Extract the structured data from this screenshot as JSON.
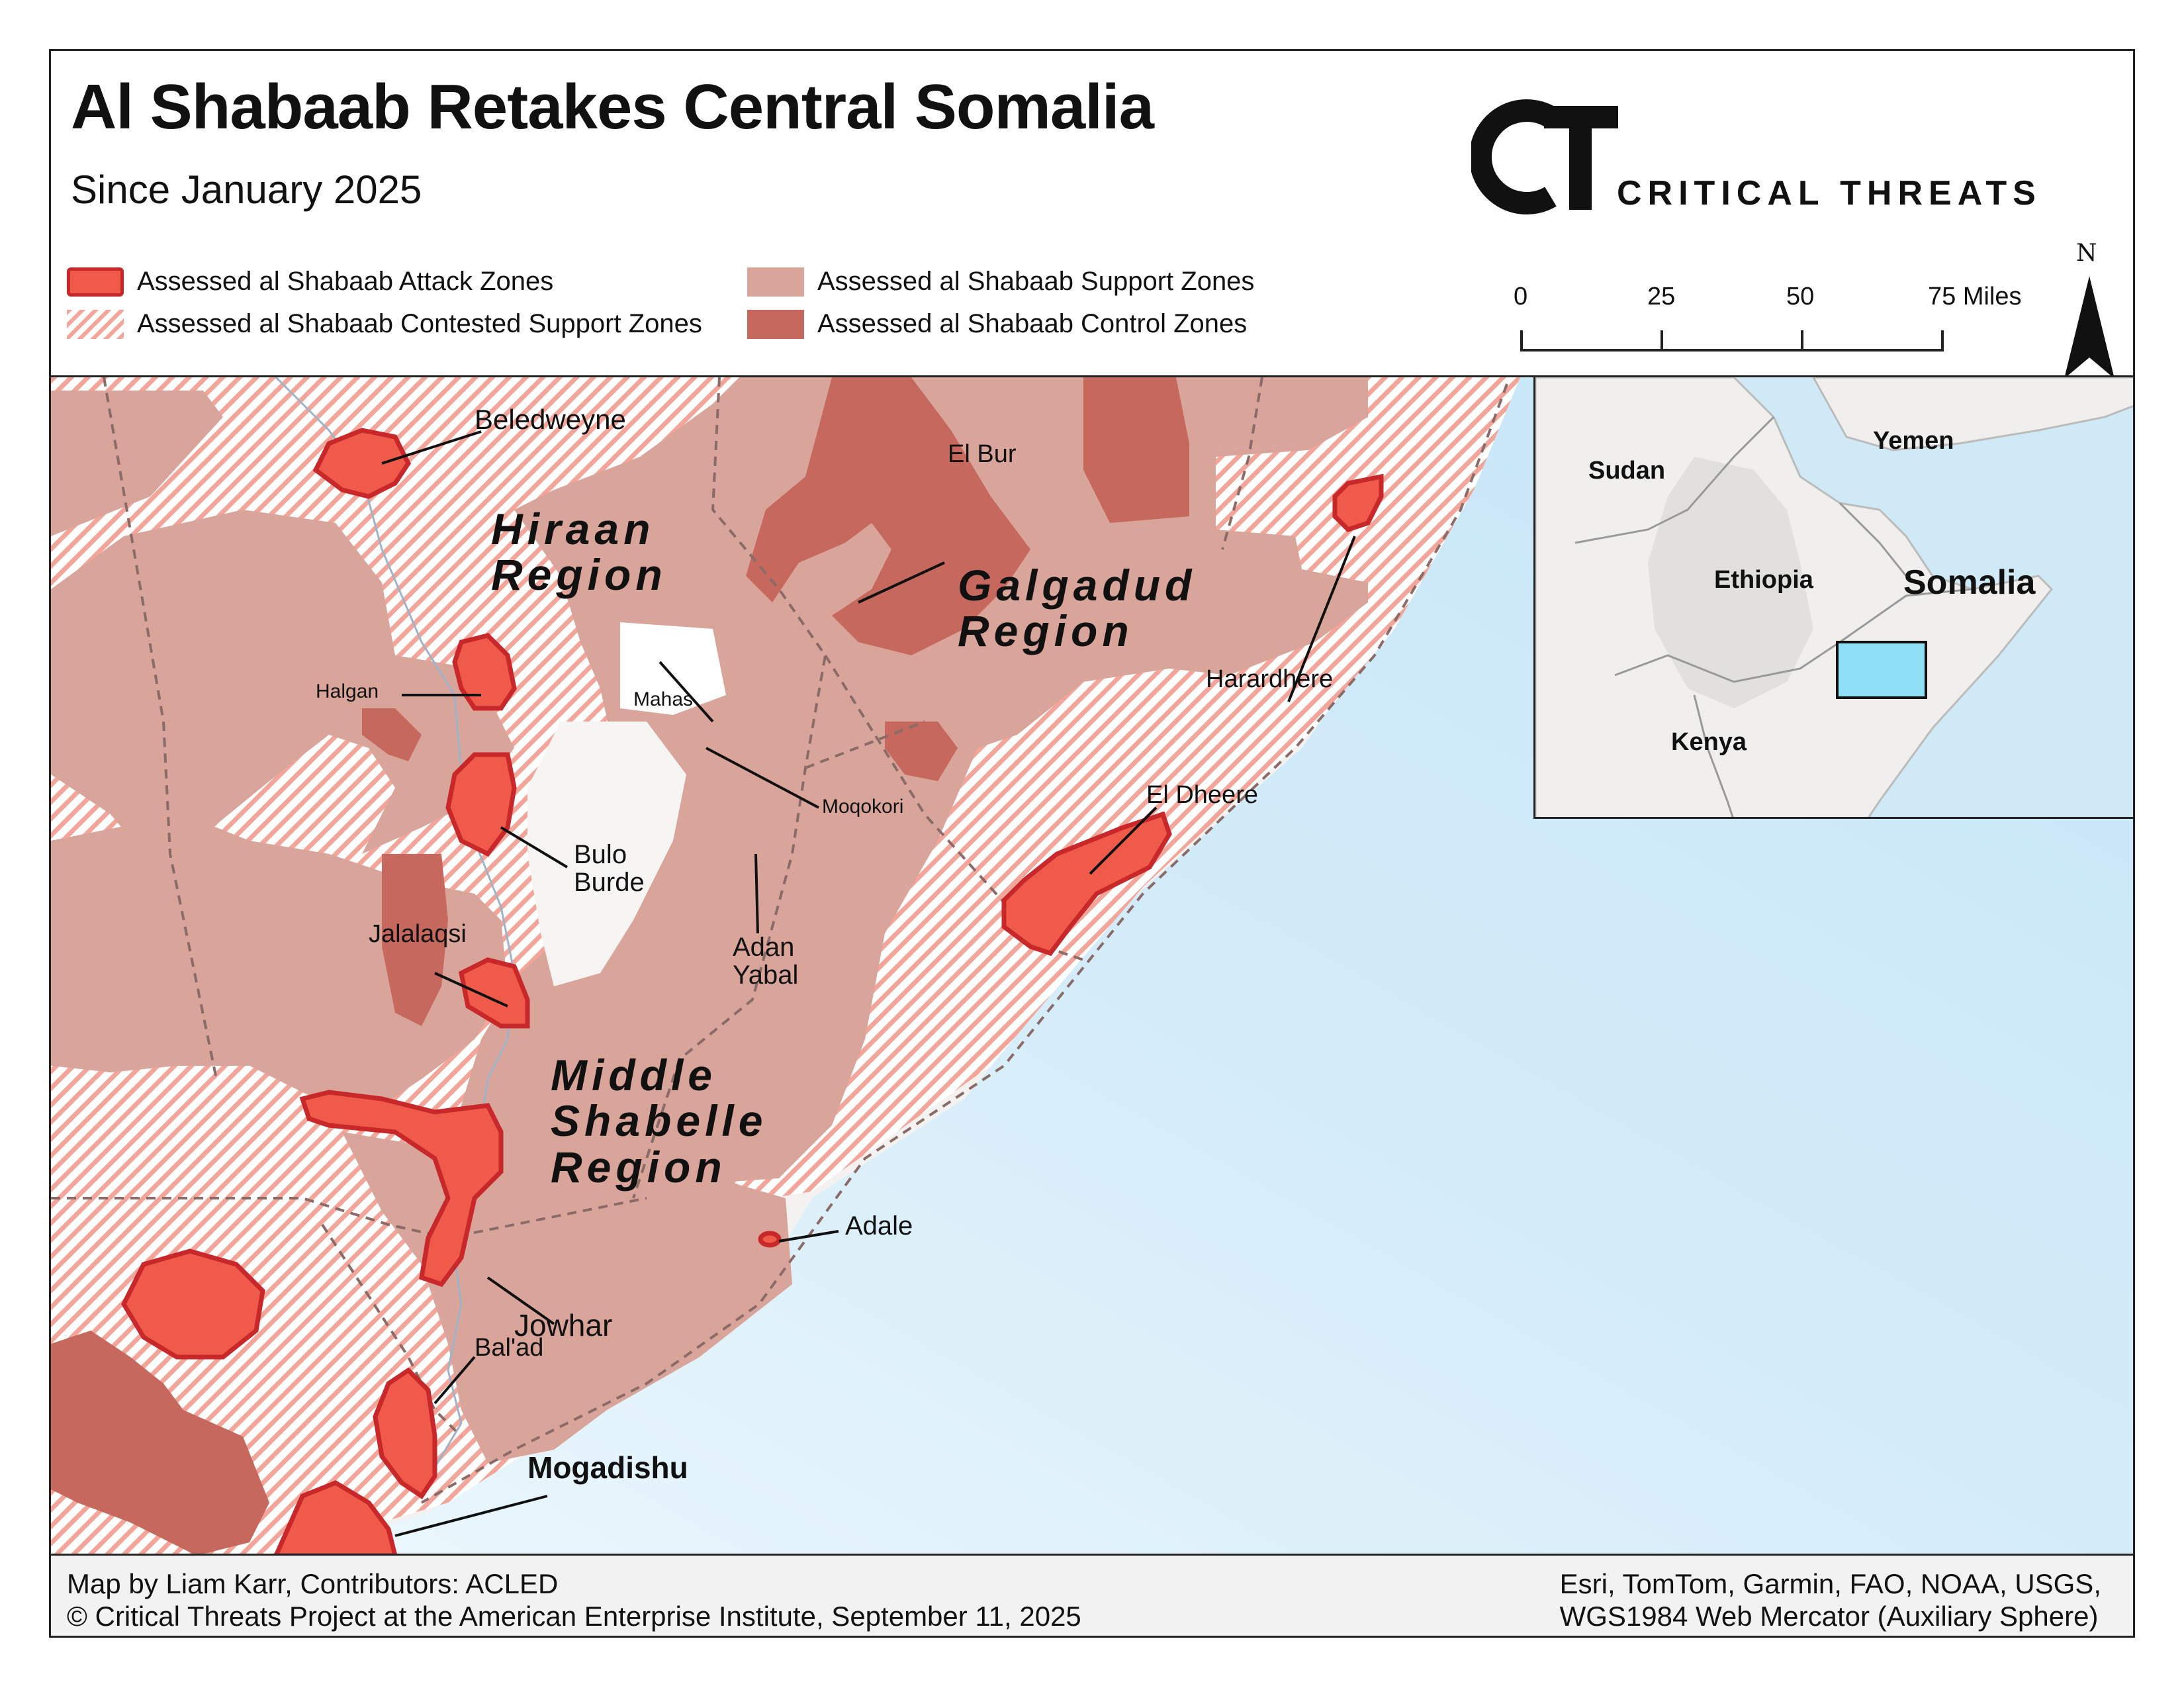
{
  "title": "Al Shabaab Retakes Central Somalia",
  "subtitle": "Since January 2025",
  "logo": {
    "mark": "CT",
    "text": "CRITICAL THREATS"
  },
  "legend": {
    "attack": "Assessed al Shabaab Attack Zones",
    "contested": "Assessed al Shabaab Contested Support Zones",
    "support": "Assessed al Shabaab Support Zones",
    "control": "Assessed al Shabaab Control Zones"
  },
  "scale": {
    "ticks": [
      "0",
      "25",
      "50",
      "75 Miles"
    ]
  },
  "north": "N",
  "regions": {
    "hiraan": [
      "Hiraan",
      "Region"
    ],
    "galgadud": [
      "Galgadud",
      "Region"
    ],
    "middle_shabelle": [
      "Middle",
      "Shabelle",
      "Region"
    ]
  },
  "places": {
    "beledweyne": "Beledweyne",
    "el_bur": "El Bur",
    "halgan": "Halgan",
    "mahas": "Mahas",
    "harardhere": "Harardhere",
    "el_dheere": "El Dheere",
    "moqokori": "Moqokori",
    "bulo_burde": [
      "Bulo",
      "Burde"
    ],
    "jalalaqsi": "Jalalaqsi",
    "adan_yabal": [
      "Adan",
      "Yabal"
    ],
    "adale": "Adale",
    "jowhar": "Jowhar",
    "balad": "Bal'ad",
    "mogadishu": "Mogadishu"
  },
  "inset": {
    "sudan": "Sudan",
    "yemen": "Yemen",
    "ethiopia": "Ethiopia",
    "somalia": "Somalia",
    "kenya": "Kenya"
  },
  "footer": {
    "line1": "Map by Liam Karr, Contributors: ACLED",
    "line2": "© Critical Threats Project at the American Enterprise Institute, September 11, 2025",
    "line3": "Esri, TomTom, Garmin, FAO, NOAA, USGS,",
    "line4": "WGS1984 Web Mercator (Auxiliary Sphere)"
  },
  "colors": {
    "attack_fill": "#f05a4b",
    "attack_stroke": "#c8282a",
    "support": "#d9a49a",
    "control": "#c6685d",
    "contested_stripe": "#f4a59a",
    "sea": "#cde9f8",
    "land": "#f3f2f0"
  }
}
